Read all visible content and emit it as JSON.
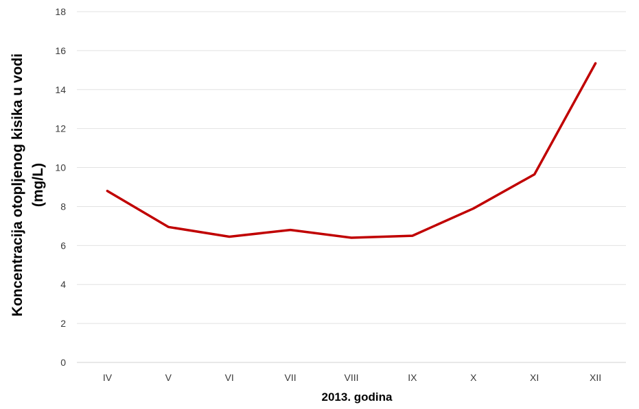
{
  "chart_data": {
    "type": "line",
    "title": "",
    "xlabel": "2013. godina",
    "ylabel_line1": "Koncentracija otopljenog kisika u vodi",
    "ylabel_line2": "(mg/L)",
    "categories": [
      "IV",
      "V",
      "VI",
      "VII",
      "VIII",
      "IX",
      "X",
      "XI",
      "XII"
    ],
    "series": [
      {
        "values": [
          8.8,
          6.95,
          6.45,
          6.8,
          6.4,
          6.5,
          7.9,
          9.65,
          15.35
        ],
        "color": "#c00000"
      }
    ],
    "ylim": [
      0,
      18
    ],
    "yticks": [
      0,
      2,
      4,
      6,
      8,
      10,
      12,
      14,
      16,
      18
    ],
    "grid": true,
    "legend": "none"
  }
}
